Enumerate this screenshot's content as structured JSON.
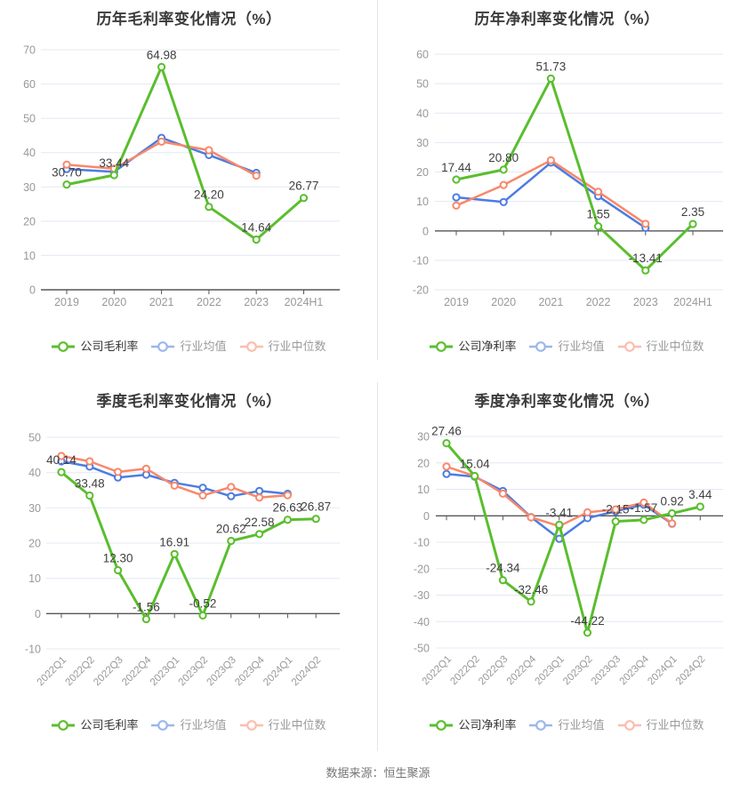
{
  "source_note": "数据来源：恒生聚源",
  "chart_data": [
    {
      "id": "annual-gross-margin",
      "type": "line",
      "title": "历年毛利率变化情况（%）",
      "categories": [
        "2019",
        "2020",
        "2021",
        "2022",
        "2023",
        "2024H1"
      ],
      "y_axis": {
        "min": 0,
        "max": 70,
        "step": 10
      },
      "grid": true,
      "legend_position": "bottom",
      "series": [
        {
          "id": "company",
          "name": "公司毛利率",
          "color": "#5ABE2D",
          "values": [
            30.7,
            33.44,
            64.98,
            24.2,
            14.64,
            26.77
          ],
          "point_labels": [
            "30.70",
            "33.44",
            "64.98",
            "24.20",
            "14.64",
            "26.77"
          ]
        },
        {
          "id": "industry_avg",
          "name": "行业均值",
          "color": "#4D7CE0",
          "values": [
            35.2,
            34.4,
            44.3,
            39.3,
            34.1,
            null
          ]
        },
        {
          "id": "industry_median",
          "name": "行业中位数",
          "color": "#F8886B",
          "values": [
            36.5,
            35.3,
            43.2,
            40.7,
            33.3,
            null
          ]
        }
      ]
    },
    {
      "id": "annual-net-margin",
      "type": "line",
      "title": "历年净利率变化情况（%）",
      "categories": [
        "2019",
        "2020",
        "2021",
        "2022",
        "2023",
        "2024H1"
      ],
      "y_axis": {
        "min": -20,
        "max": 60,
        "step": 10
      },
      "grid": true,
      "legend_position": "bottom",
      "series": [
        {
          "id": "company",
          "name": "公司净利率",
          "color": "#5ABE2D",
          "values": [
            17.44,
            20.8,
            51.73,
            1.55,
            -13.41,
            2.35
          ],
          "point_labels": [
            "17.44",
            "20.80",
            "51.73",
            "1.55",
            "-13.41",
            "2.35"
          ]
        },
        {
          "id": "industry_avg",
          "name": "行业均值",
          "color": "#4D7CE0",
          "values": [
            11.4,
            9.8,
            23.2,
            11.8,
            1.0,
            null
          ]
        },
        {
          "id": "industry_median",
          "name": "行业中位数",
          "color": "#F8886B",
          "values": [
            8.6,
            15.6,
            24.0,
            13.3,
            2.4,
            null
          ]
        }
      ]
    },
    {
      "id": "quarterly-gross-margin",
      "type": "line",
      "title": "季度毛利率变化情况（%）",
      "categories": [
        "2022Q1",
        "2022Q2",
        "2022Q3",
        "2022Q4",
        "2023Q1",
        "2023Q2",
        "2023Q3",
        "2023Q4",
        "2024Q1",
        "2024Q2"
      ],
      "y_axis": {
        "min": -10,
        "max": 50,
        "step": 10
      },
      "grid": true,
      "legend_position": "bottom",
      "series": [
        {
          "id": "company",
          "name": "公司毛利率",
          "color": "#5ABE2D",
          "values": [
            40.14,
            33.48,
            12.3,
            -1.56,
            16.91,
            -0.52,
            20.62,
            22.58,
            26.63,
            26.87
          ],
          "point_labels": [
            "40.14",
            "33.48",
            "12.30",
            "-1.56",
            "16.91",
            "-0.52",
            "20.62",
            "22.58",
            "26.63",
            "26.87"
          ]
        },
        {
          "id": "industry_avg",
          "name": "行业均值",
          "color": "#4D7CE0",
          "values": [
            43.2,
            41.7,
            38.6,
            39.4,
            37.1,
            35.7,
            33.3,
            34.8,
            34.0,
            null
          ]
        },
        {
          "id": "industry_median",
          "name": "行业中位数",
          "color": "#F8886B",
          "values": [
            44.7,
            43.2,
            40.2,
            41.1,
            36.3,
            33.5,
            35.9,
            32.9,
            33.6,
            null
          ]
        }
      ]
    },
    {
      "id": "quarterly-net-margin",
      "type": "line",
      "title": "季度净利率变化情况（%）",
      "categories": [
        "2022Q1",
        "2022Q2",
        "2022Q3",
        "2022Q4",
        "2023Q1",
        "2023Q2",
        "2023Q3",
        "2023Q4",
        "2024Q1",
        "2024Q2"
      ],
      "y_axis": {
        "min": -50,
        "max": 30,
        "step": 10
      },
      "grid": true,
      "legend_position": "bottom",
      "series": [
        {
          "id": "company",
          "name": "公司净利率",
          "color": "#5ABE2D",
          "values": [
            27.46,
            15.04,
            -24.34,
            -32.46,
            -3.41,
            -44.22,
            -2.15,
            -1.57,
            0.92,
            3.44
          ],
          "point_labels": [
            "27.46",
            "15.04",
            "-24.34",
            "-32.46",
            "-3.41",
            "-44.22",
            "-2.15",
            "-1.57",
            "0.92",
            "3.44"
          ]
        },
        {
          "id": "industry_avg",
          "name": "行业均值",
          "color": "#4D7CE0",
          "values": [
            15.8,
            14.8,
            9.4,
            -0.5,
            -8.7,
            -0.9,
            1.7,
            4.2,
            -3.0,
            null
          ]
        },
        {
          "id": "industry_median",
          "name": "行业中位数",
          "color": "#F8886B",
          "values": [
            18.6,
            15.0,
            8.4,
            -0.6,
            -3.9,
            1.3,
            2.4,
            5.0,
            -2.9,
            null
          ]
        }
      ]
    }
  ]
}
